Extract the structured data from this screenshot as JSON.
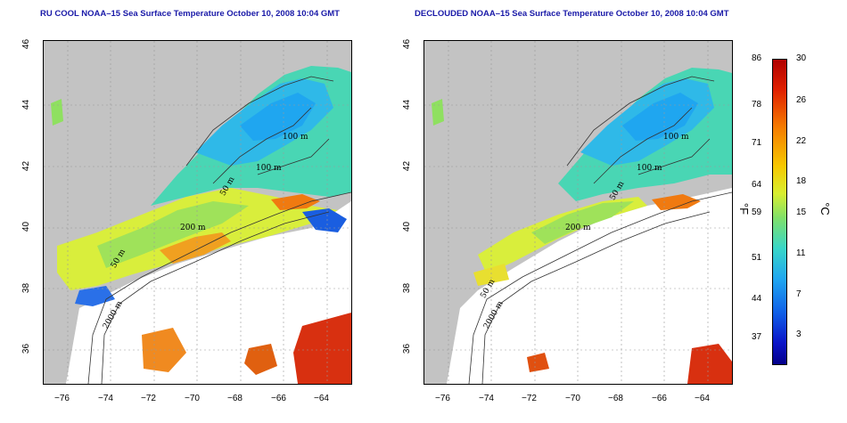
{
  "left_map": {
    "title": "RU COOL NOAA–15 Sea Surface Temperature October 10, 2008 10:04 GMT",
    "contour_labels": [
      "100 m",
      "100 m",
      "50 m",
      "200 m",
      "50 m",
      "2000 m"
    ]
  },
  "right_map": {
    "title": "DECLOUDED NOAA–15 Sea Surface Temperature October 10, 2008 10:04 GMT",
    "contour_labels": [
      "100 m",
      "100 m",
      "50 m",
      "200 m",
      "50 m",
      "2000 m"
    ]
  },
  "axes": {
    "lon_ticks": [
      "−76",
      "−74",
      "−72",
      "−70",
      "−68",
      "−66",
      "−64"
    ],
    "lat_ticks": [
      "46",
      "44",
      "42",
      "40",
      "38",
      "36"
    ]
  },
  "colorbar": {
    "f_labels": [
      "86",
      "78",
      "71",
      "64",
      "59",
      "51",
      "44",
      "37"
    ],
    "c_labels": [
      "30",
      "26",
      "22",
      "18",
      "15",
      "11",
      "7",
      "3"
    ],
    "f_unit": "°F",
    "c_unit": "°C"
  },
  "colors": {
    "land": "#c3c3c3",
    "cloud": "#ffffff",
    "title": "#1a1aa8"
  }
}
